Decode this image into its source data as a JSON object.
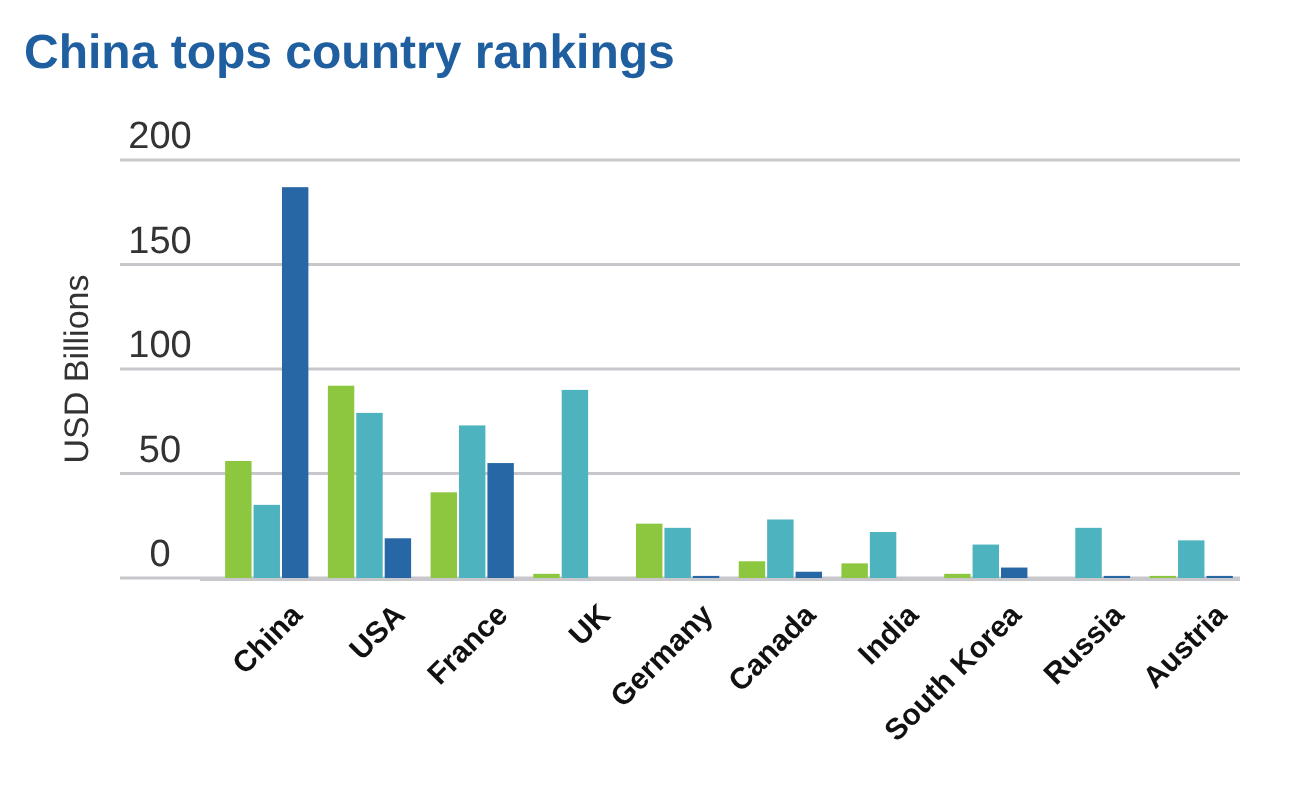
{
  "chart_data": {
    "type": "bar",
    "title": "China tops country rankings",
    "ylabel": "USD Billions",
    "categories": [
      "China",
      "USA",
      "France",
      "UK",
      "Germany",
      "Canada",
      "India",
      "South Korea",
      "Russia",
      "Austria"
    ],
    "series": [
      {
        "color": "#8dc63f",
        "values": [
          56,
          92,
          41,
          2,
          26,
          8,
          7,
          2,
          null,
          1
        ]
      },
      {
        "color": "#4db3bf",
        "values": [
          35,
          79,
          73,
          90,
          24,
          28,
          22,
          16,
          24,
          18
        ]
      },
      {
        "color": "#2867a5",
        "values": [
          187,
          19,
          55,
          null,
          1,
          3,
          null,
          5,
          1,
          1
        ]
      }
    ],
    "ylim": [
      0,
      200
    ],
    "yticks": [
      0,
      50,
      100,
      150,
      200
    ],
    "grid": "y"
  }
}
